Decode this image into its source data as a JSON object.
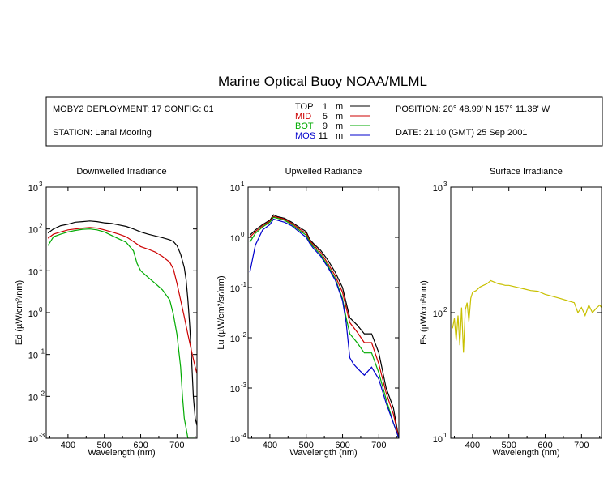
{
  "title": "Marine Optical Buoy NOAA/MLML",
  "info": {
    "deployment": "MOBY2 DEPLOYMENT: 17 CONFIG: 01",
    "station": "STATION: Lanai Mooring",
    "position": "POSITION: 20° 48.99' N   157° 11.38' W",
    "date": "DATE: 21:10 (GMT) 25 Sep 2001",
    "legend": [
      {
        "name": "TOP",
        "depth": "1",
        "unit": "m",
        "color": "#000000"
      },
      {
        "name": "MID",
        "depth": "5",
        "unit": "m",
        "color": "#cc0000"
      },
      {
        "name": "BOT",
        "depth": "9",
        "unit": "m",
        "color": "#00aa00"
      },
      {
        "name": "MOS",
        "depth": "11",
        "unit": "m",
        "color": "#0000cc"
      }
    ]
  },
  "chart_data": [
    {
      "type": "line",
      "title": "Downwelled Irradiance",
      "xlabel": "Wavelength (nm)",
      "ylabel": "Ed  (µW/cm²/nm)",
      "yscale": "log",
      "xlim": [
        340,
        755
      ],
      "ylim": [
        0.001,
        1000
      ],
      "xticks": [
        400,
        500,
        600,
        700
      ],
      "yticks": [
        {
          "value": 0.001,
          "label": "10",
          "exp": "-3"
        },
        {
          "value": 0.01,
          "label": "10",
          "exp": "-2"
        },
        {
          "value": 0.1,
          "label": "10",
          "exp": "-1"
        },
        {
          "value": 1,
          "label": "10",
          "exp": "0"
        },
        {
          "value": 10,
          "label": "10",
          "exp": "1"
        },
        {
          "value": 100,
          "label": "10",
          "exp": "2"
        },
        {
          "value": 1000,
          "label": "10",
          "exp": "3"
        }
      ],
      "series": [
        {
          "name": "TOP",
          "color": "#000000",
          "x": [
            345,
            360,
            380,
            400,
            420,
            440,
            460,
            480,
            500,
            520,
            540,
            560,
            580,
            600,
            620,
            640,
            660,
            680,
            690,
            700,
            710,
            720,
            725,
            730,
            735,
            740,
            745,
            750,
            755
          ],
          "y": [
            80,
            100,
            120,
            130,
            145,
            150,
            155,
            150,
            140,
            135,
            125,
            115,
            100,
            85,
            75,
            68,
            62,
            55,
            50,
            40,
            25,
            12,
            6,
            2,
            0.5,
            0.08,
            0.01,
            0.003,
            0.002
          ]
        },
        {
          "name": "MID",
          "color": "#cc0000",
          "x": [
            345,
            360,
            380,
            400,
            420,
            440,
            460,
            480,
            500,
            520,
            540,
            560,
            580,
            600,
            620,
            640,
            660,
            680,
            690,
            700,
            710,
            720,
            730,
            740,
            750,
            755
          ],
          "y": [
            60,
            75,
            85,
            95,
            100,
            105,
            108,
            105,
            95,
            85,
            75,
            65,
            50,
            38,
            33,
            28,
            22,
            16,
            11,
            5,
            2,
            0.8,
            0.3,
            0.12,
            0.05,
            0.035
          ]
        },
        {
          "name": "BOT",
          "color": "#00aa00",
          "x": [
            345,
            360,
            380,
            400,
            420,
            440,
            460,
            480,
            500,
            520,
            540,
            560,
            580,
            590,
            600,
            620,
            640,
            660,
            680,
            690,
            700,
            710,
            715,
            720,
            730,
            740,
            750
          ],
          "y": [
            40,
            65,
            75,
            85,
            92,
            98,
            100,
            95,
            85,
            70,
            58,
            48,
            30,
            15,
            10,
            7,
            5,
            3.5,
            2,
            0.9,
            0.3,
            0.05,
            0.01,
            0.003,
            0.001,
            0.001,
            0.001
          ]
        }
      ]
    },
    {
      "type": "line",
      "title": "Upwelled Radiance",
      "xlabel": "Wavelength (nm)",
      "ylabel": "Lu  (µW/cm²/sr/nm)",
      "yscale": "log",
      "xlim": [
        340,
        755
      ],
      "ylim": [
        0.0001,
        10
      ],
      "xticks": [
        400,
        500,
        600,
        700
      ],
      "yticks": [
        {
          "value": 0.0001,
          "label": "10",
          "exp": "-4"
        },
        {
          "value": 0.001,
          "label": "10",
          "exp": "-3"
        },
        {
          "value": 0.01,
          "label": "10",
          "exp": "-2"
        },
        {
          "value": 0.1,
          "label": "10",
          "exp": "-1"
        },
        {
          "value": 1,
          "label": "10",
          "exp": "0"
        },
        {
          "value": 10,
          "label": "10",
          "exp": "1"
        }
      ],
      "series": [
        {
          "name": "TOP",
          "color": "#000000",
          "x": [
            345,
            360,
            380,
            400,
            410,
            420,
            440,
            460,
            480,
            500,
            510,
            520,
            540,
            560,
            580,
            600,
            610,
            620,
            640,
            660,
            680,
            700,
            720,
            740,
            755
          ],
          "y": [
            1.1,
            1.4,
            1.8,
            2.2,
            2.8,
            2.6,
            2.4,
            2.0,
            1.6,
            1.3,
            0.9,
            0.75,
            0.55,
            0.35,
            0.2,
            0.1,
            0.05,
            0.025,
            0.018,
            0.012,
            0.012,
            0.005,
            0.001,
            0.0004,
            0.0001
          ]
        },
        {
          "name": "MID",
          "color": "#cc0000",
          "x": [
            345,
            360,
            380,
            400,
            410,
            420,
            440,
            460,
            480,
            500,
            510,
            520,
            540,
            560,
            580,
            600,
            610,
            620,
            640,
            660,
            680,
            700,
            720,
            740,
            755
          ],
          "y": [
            1.0,
            1.3,
            1.7,
            2.1,
            2.6,
            2.5,
            2.3,
            1.9,
            1.5,
            1.2,
            0.85,
            0.7,
            0.5,
            0.3,
            0.17,
            0.08,
            0.04,
            0.02,
            0.013,
            0.008,
            0.008,
            0.003,
            0.0008,
            0.0003,
            0.0001
          ]
        },
        {
          "name": "BOT",
          "color": "#00aa00",
          "x": [
            345,
            360,
            380,
            400,
            410,
            420,
            440,
            460,
            480,
            500,
            510,
            520,
            540,
            560,
            580,
            600,
            610,
            620,
            640,
            660,
            680,
            700,
            720,
            740,
            755
          ],
          "y": [
            0.8,
            1.2,
            1.6,
            2.0,
            2.5,
            2.4,
            2.2,
            1.8,
            1.4,
            1.1,
            0.8,
            0.65,
            0.45,
            0.27,
            0.15,
            0.06,
            0.025,
            0.012,
            0.008,
            0.005,
            0.005,
            0.002,
            0.0006,
            0.0002,
            0.0001
          ]
        },
        {
          "name": "MOS",
          "color": "#0000cc",
          "x": [
            345,
            360,
            380,
            400,
            410,
            420,
            440,
            460,
            480,
            500,
            510,
            520,
            540,
            560,
            580,
            600,
            610,
            620,
            630,
            640,
            660,
            680,
            700,
            720,
            740,
            755
          ],
          "y": [
            0.2,
            0.7,
            1.4,
            1.8,
            2.3,
            2.2,
            2.0,
            1.7,
            1.3,
            1.0,
            0.75,
            0.6,
            0.42,
            0.25,
            0.14,
            0.055,
            0.02,
            0.004,
            0.003,
            0.0025,
            0.0018,
            0.0026,
            0.0015,
            0.0005,
            0.0002,
            0.0001
          ]
        }
      ]
    },
    {
      "type": "line",
      "title": "Surface Irradiance",
      "xlabel": "Wavelength (nm)",
      "ylabel": "Es  (µW/cm²/nm)",
      "yscale": "log",
      "xlim": [
        340,
        755
      ],
      "ylim": [
        10,
        1000
      ],
      "xticks": [
        400,
        500,
        600,
        700
      ],
      "yticks": [
        {
          "value": 10,
          "label": "10",
          "exp": "1"
        },
        {
          "value": 100,
          "label": "10",
          "exp": "2"
        },
        {
          "value": 1000,
          "label": "10",
          "exp": "3"
        }
      ],
      "series": [
        {
          "name": "Es",
          "color": "#c8c000",
          "x": [
            345,
            350,
            355,
            360,
            365,
            370,
            375,
            380,
            385,
            390,
            395,
            400,
            410,
            420,
            430,
            440,
            450,
            460,
            470,
            480,
            490,
            500,
            520,
            540,
            560,
            580,
            600,
            620,
            640,
            660,
            680,
            690,
            700,
            710,
            720,
            730,
            740,
            750,
            755
          ],
          "y": [
            75,
            90,
            60,
            95,
            55,
            110,
            48,
            105,
            120,
            85,
            130,
            145,
            150,
            160,
            165,
            170,
            180,
            175,
            170,
            168,
            165,
            165,
            160,
            155,
            150,
            148,
            140,
            135,
            130,
            125,
            120,
            100,
            110,
            95,
            115,
            100,
            108,
            115,
            110
          ]
        }
      ]
    }
  ]
}
